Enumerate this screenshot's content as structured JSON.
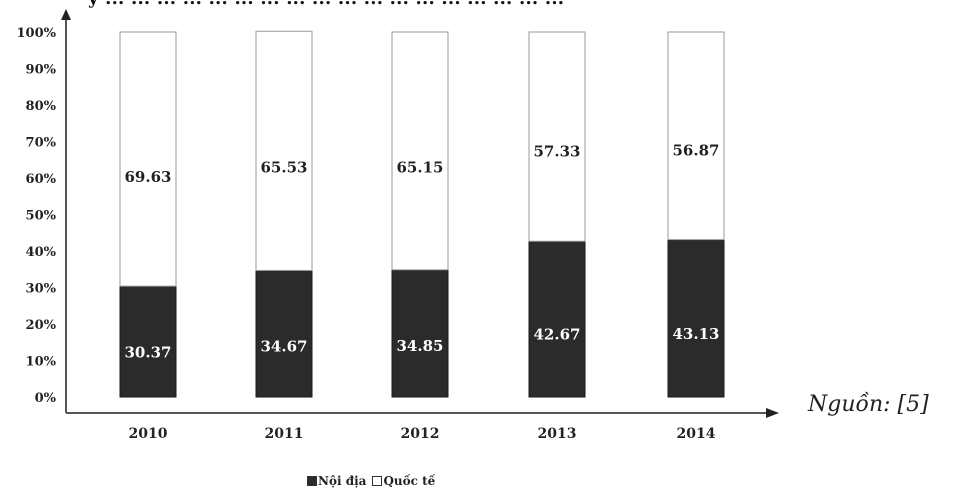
{
  "top_text": "y ... ... ... ... ... ... ... ... ... ... ... ... ... ... ... ... ... ...",
  "source_note": "Nguồn: [5]",
  "colors": {
    "domestic": "#2b2b2b",
    "international": "#ffffff",
    "axis": "#555555"
  },
  "chart_data": {
    "type": "bar",
    "stacked": true,
    "categories": [
      "2010",
      "2011",
      "2012",
      "2013",
      "2014"
    ],
    "series": [
      {
        "name": "Nội địa",
        "values": [
          30.37,
          34.67,
          34.85,
          42.67,
          43.13
        ],
        "labels": [
          "30.37",
          "34.67",
          "34.85",
          "42.67",
          "43.13"
        ]
      },
      {
        "name": "Quốc tế",
        "values": [
          69.63,
          65.53,
          65.15,
          57.33,
          56.87
        ],
        "labels": [
          "69.63",
          "65.53",
          "65.15",
          "57.33",
          "56.87"
        ]
      }
    ],
    "yticks": [
      "0%",
      "10%",
      "20%",
      "30%",
      "40%",
      "50%",
      "60%",
      "70%",
      "80%",
      "90%",
      "100%"
    ],
    "ylim": [
      0,
      100
    ],
    "xlabel": "",
    "ylabel": "",
    "legend": {
      "placement": "bottom"
    }
  }
}
